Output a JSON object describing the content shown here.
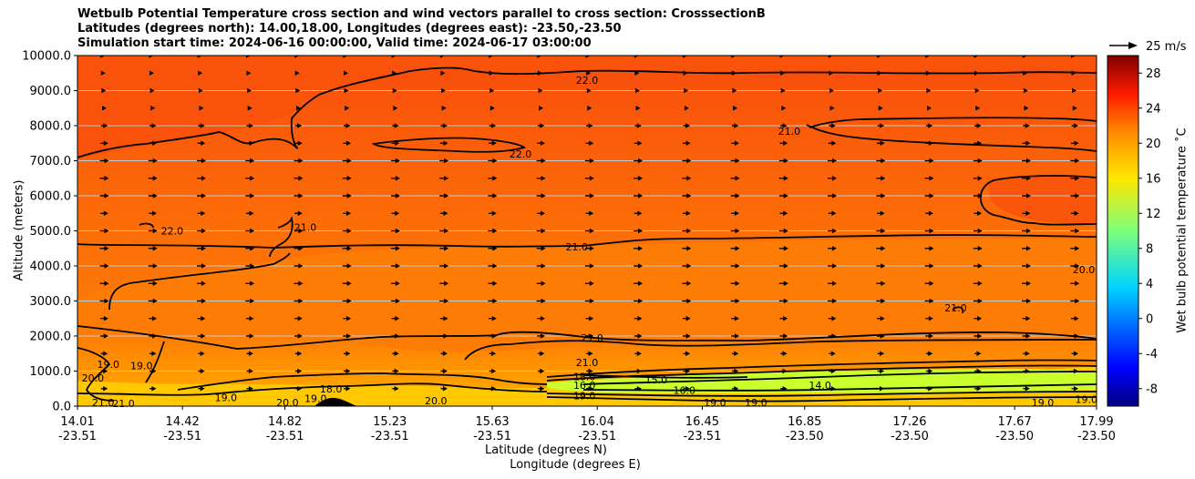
{
  "title": {
    "line1": "Wetbulb Potential Temperature cross section and wind vectors parallel to cross section: CrosssectionB",
    "line2": "Latitudes (degrees north): 14.00,18.00, Longitudes (degrees east): -23.50,-23.50",
    "line3": "Simulation start time: 2024-06-16 00:00:00, Valid time: 2024-06-17 03:00:00"
  },
  "chart_data": {
    "type": "heatmap",
    "subtype": "cross-section filled contour with wind vectors",
    "ylabel": "Altitude (meters)",
    "xlabel_line1": "Latitude (degrees N)",
    "xlabel_line2": "Longitude (degrees E)",
    "ylim": [
      0,
      10000
    ],
    "yticks": [
      "0.0",
      "1000.0",
      "2000.0",
      "3000.0",
      "4000.0",
      "5000.0",
      "6000.0",
      "7000.0",
      "8000.0",
      "9000.0",
      "10000.0"
    ],
    "ytick_values": [
      0,
      1000,
      2000,
      3000,
      4000,
      5000,
      6000,
      7000,
      8000,
      9000,
      10000
    ],
    "xlim": [
      14.01,
      17.99
    ],
    "xtick_values": [
      14.01,
      14.42,
      14.82,
      15.23,
      15.63,
      16.04,
      16.45,
      16.85,
      17.26,
      17.67,
      17.99
    ],
    "xticks_lat": [
      "14.01",
      "14.42",
      "14.82",
      "15.23",
      "15.63",
      "16.04",
      "16.45",
      "16.85",
      "17.26",
      "17.67",
      "17.99"
    ],
    "xticks_lon": [
      "-23.51",
      "-23.51",
      "-23.51",
      "-23.51",
      "-23.51",
      "-23.51",
      "-23.51",
      "-23.50",
      "-23.50",
      "-23.50",
      "-23.50"
    ],
    "grid_y": true,
    "colorbar": {
      "label": "Wet bulb potential temperature ˚C",
      "range": [
        -10,
        30
      ],
      "ticks": [
        "-8",
        "-4",
        "0",
        "4",
        "8",
        "12",
        "16",
        "20",
        "24",
        "28"
      ],
      "tick_values": [
        -8,
        -4,
        0,
        4,
        8,
        12,
        16,
        20,
        24,
        28
      ]
    },
    "quiver_key": {
      "label": "25 m/s",
      "speed": 25
    },
    "contour_labels": [
      {
        "text": "22.0",
        "lat": 16.0,
        "alt": 9300
      },
      {
        "text": "22.0",
        "lat": 15.74,
        "alt": 7200
      },
      {
        "text": "21.0",
        "lat": 16.79,
        "alt": 7850
      },
      {
        "text": "22.0",
        "lat": 14.38,
        "alt": 5000
      },
      {
        "text": "21.0",
        "lat": 14.9,
        "alt": 5100
      },
      {
        "text": "21.0",
        "lat": 15.96,
        "alt": 4550
      },
      {
        "text": "20.0",
        "lat": 17.94,
        "alt": 3900
      },
      {
        "text": "21.0",
        "lat": 17.44,
        "alt": 2800
      },
      {
        "text": "21.0",
        "lat": 16.02,
        "alt": 1950
      },
      {
        "text": "21.0",
        "lat": 16.0,
        "alt": 1250
      },
      {
        "text": "19.0",
        "lat": 14.13,
        "alt": 1200
      },
      {
        "text": "19.0",
        "lat": 14.26,
        "alt": 1150
      },
      {
        "text": "20.0",
        "lat": 14.07,
        "alt": 800
      },
      {
        "text": "21.0",
        "lat": 14.11,
        "alt": 100
      },
      {
        "text": "21.0",
        "lat": 14.19,
        "alt": 80
      },
      {
        "text": "19.0",
        "lat": 14.59,
        "alt": 250
      },
      {
        "text": "20.0",
        "lat": 14.83,
        "alt": 100
      },
      {
        "text": "19.0",
        "lat": 14.94,
        "alt": 220
      },
      {
        "text": "18.0",
        "lat": 15.0,
        "alt": 500
      },
      {
        "text": "20.0",
        "lat": 15.41,
        "alt": 150
      },
      {
        "text": "18.0",
        "lat": 15.99,
        "alt": 850
      },
      {
        "text": "16.0",
        "lat": 15.99,
        "alt": 600
      },
      {
        "text": "19.0",
        "lat": 15.99,
        "alt": 300
      },
      {
        "text": "15.0",
        "lat": 16.27,
        "alt": 750
      },
      {
        "text": "16.0",
        "lat": 16.38,
        "alt": 450
      },
      {
        "text": "19.0",
        "lat": 16.5,
        "alt": 100
      },
      {
        "text": "19.0",
        "lat": 16.66,
        "alt": 100
      },
      {
        "text": "14.0",
        "lat": 16.91,
        "alt": 600
      },
      {
        "text": "19.0",
        "lat": 17.78,
        "alt": 100
      },
      {
        "text": "19.0",
        "lat": 17.95,
        "alt": 200
      }
    ],
    "wind_vectors": {
      "direction": "parallel to cross section, mostly pointing north (positive)",
      "altitude_levels": [
        500,
        1000,
        1500,
        2000,
        2500,
        3000,
        3500,
        4000,
        4500,
        5000,
        5500,
        6000,
        6500,
        7000,
        7500,
        8000,
        8500,
        9000,
        9500,
        10000
      ],
      "speed_m_s_by_level": [
        6,
        6,
        6,
        7,
        7,
        8,
        8,
        8,
        8,
        8,
        7,
        8,
        8,
        8,
        7,
        6,
        4,
        3,
        2,
        1
      ]
    }
  }
}
